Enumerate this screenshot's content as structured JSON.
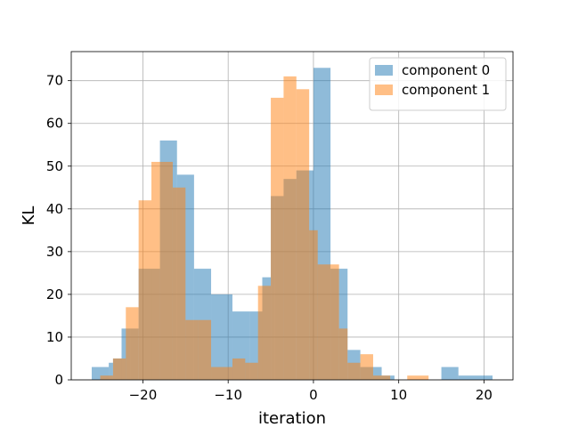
{
  "chart_data": {
    "type": "histogram",
    "xlabel": "iteration",
    "ylabel": "KL",
    "xlim": [
      -28.4,
      23.4
    ],
    "ylim": [
      0,
      76.8
    ],
    "x_ticks": [
      -20,
      -10,
      0,
      10,
      20
    ],
    "y_ticks": [
      0,
      10,
      20,
      30,
      40,
      50,
      60,
      70
    ],
    "grid": true,
    "legend_position": "upper right",
    "alpha": 0.5,
    "series": [
      {
        "name": "component 0",
        "color": "#1f77b4",
        "bin_edges": [
          -26.0,
          -24.0,
          -23.5,
          -22.5,
          -21.5,
          -20.5,
          -19.0,
          -18.0,
          -16.0,
          -14.0,
          -12.0,
          -10.0,
          -9.5,
          -7.5,
          -6.0,
          -5.0,
          -4.5,
          -3.5,
          -2.0,
          -0.5,
          0.0,
          2.0,
          3.0,
          4.0,
          5.5,
          7.0,
          8.0,
          9.0,
          9.5,
          15.0,
          17.0,
          21.0
        ],
        "counts": [
          3,
          4,
          5,
          12,
          12,
          26,
          26,
          56,
          48,
          26,
          20,
          20,
          16,
          16,
          24,
          43,
          43,
          47,
          49,
          49,
          73,
          26,
          26,
          7,
          3,
          3,
          1,
          1,
          0,
          3,
          1
        ]
      },
      {
        "name": "component 1",
        "color": "#ff7f0e",
        "bin_edges": [
          -25.0,
          -23.5,
          -22.0,
          -20.5,
          -19.0,
          -18.0,
          -16.5,
          -15.0,
          -13.5,
          -12.0,
          -10.0,
          -9.5,
          -8.0,
          -6.5,
          -5.0,
          -3.5,
          -2.0,
          -0.5,
          0.5,
          2.0,
          3.0,
          4.0,
          5.5,
          7.0,
          8.0,
          9.0,
          11.0,
          13.5
        ],
        "counts": [
          1,
          5,
          17,
          42,
          51,
          51,
          45,
          14,
          14,
          3,
          3,
          5,
          4,
          22,
          66,
          71,
          68,
          35,
          27,
          27,
          12,
          4,
          6,
          1,
          1,
          0,
          1
        ]
      }
    ]
  }
}
